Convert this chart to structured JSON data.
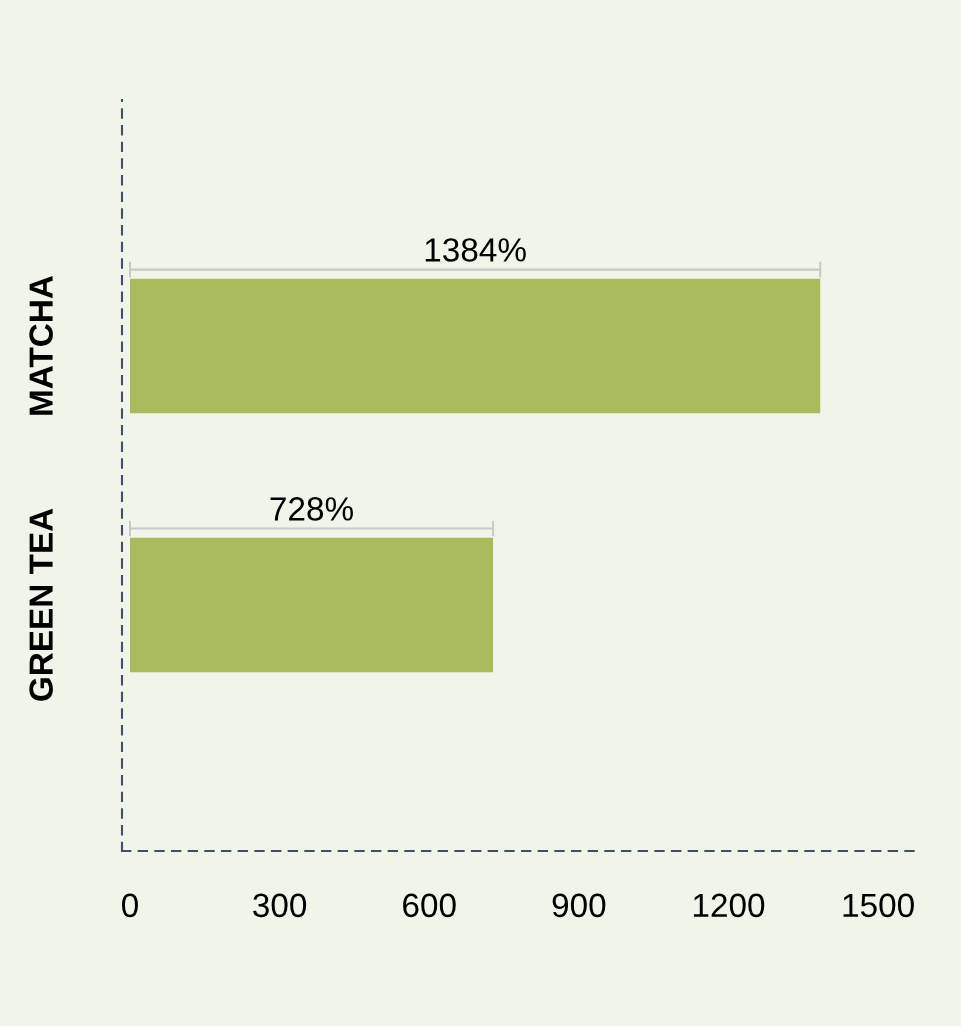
{
  "chart_data": {
    "type": "bar",
    "orientation": "horizontal",
    "categories": [
      "MATCHA",
      "GREEN TEA"
    ],
    "values": [
      1384,
      728
    ],
    "value_labels": [
      "1384%",
      "728%"
    ],
    "color": "#a8bc5e",
    "xlim": [
      -16,
      1580
    ],
    "xticks": [
      0,
      300,
      600,
      900,
      1200,
      1500
    ],
    "grid": false,
    "line_style": "dashed"
  }
}
